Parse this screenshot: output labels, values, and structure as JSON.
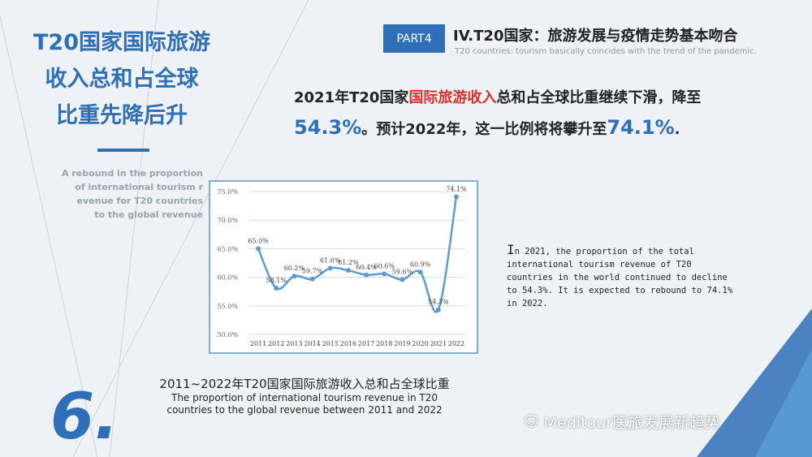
{
  "left": {
    "title_lines": [
      "T20国家国际旅游",
      "收入总和占全球",
      "比重先降后升"
    ],
    "subtitle_lines": [
      "A rebound in the proportion",
      "of international tourism r",
      "evenue for T20 countries",
      "to the global revenue"
    ]
  },
  "header": {
    "badge": "PART4",
    "title": "IV.T20国家：旅游发展与疫情走势基本吻合",
    "subtitle": "T20 countries: tourism basically coincides with the trend of the pandemic."
  },
  "headline": {
    "part1": "2021年T20国家",
    "highlight": "国际旅游收入",
    "part2": "总和占全球比重继续下滑，降至",
    "value1": "54.3%",
    "part3": "。预计2022年，这一比例将将攀升至",
    "value2": "74.1%",
    "part4": "."
  },
  "description": {
    "first_letter": "I",
    "text": "n 2021, the proportion of the total international tourism revenue of T20 countries in the world continued to decline to 54.3%. It is expected to rebound to 74.1% in 2022."
  },
  "caption": {
    "cn": "2011~2022年T20国家国际旅游收入总和占全球比重",
    "en": "The proportion of international tourism revenue in T20 countries to the global revenue between 2011 and 2022"
  },
  "watermark": {
    "text": "Meditour医旅发展新趋势",
    "icon": "wechat-icon"
  },
  "section_number": "6.",
  "colors": {
    "accent": "#2e6fb8",
    "highlight_red": "#d9302c",
    "line": "#5b9bd5",
    "chart_border": "#7fb0d8"
  },
  "chart_data": {
    "type": "line",
    "categories": [
      "2011",
      "2012",
      "2013",
      "2014",
      "2015",
      "2016",
      "2017",
      "2018",
      "2019",
      "2020",
      "2021",
      "2022"
    ],
    "values": [
      65.0,
      58.1,
      60.2,
      59.7,
      61.6,
      61.2,
      60.4,
      60.6,
      59.6,
      60.9,
      54.3,
      74.1
    ],
    "labels": [
      "65.0%",
      "58.1%",
      "60.2%",
      "59.7%",
      "61.6%",
      "61.2%",
      "60.4%",
      "60.6%",
      "59.6%",
      "60.9%",
      "54.3%",
      "74.1%"
    ],
    "ytick_labels": [
      "50.0%",
      "55.0%",
      "60.0%",
      "65.0%",
      "70.0%",
      "75.0%"
    ],
    "ylim": [
      50,
      75
    ],
    "grid": true,
    "smooth": true
  }
}
